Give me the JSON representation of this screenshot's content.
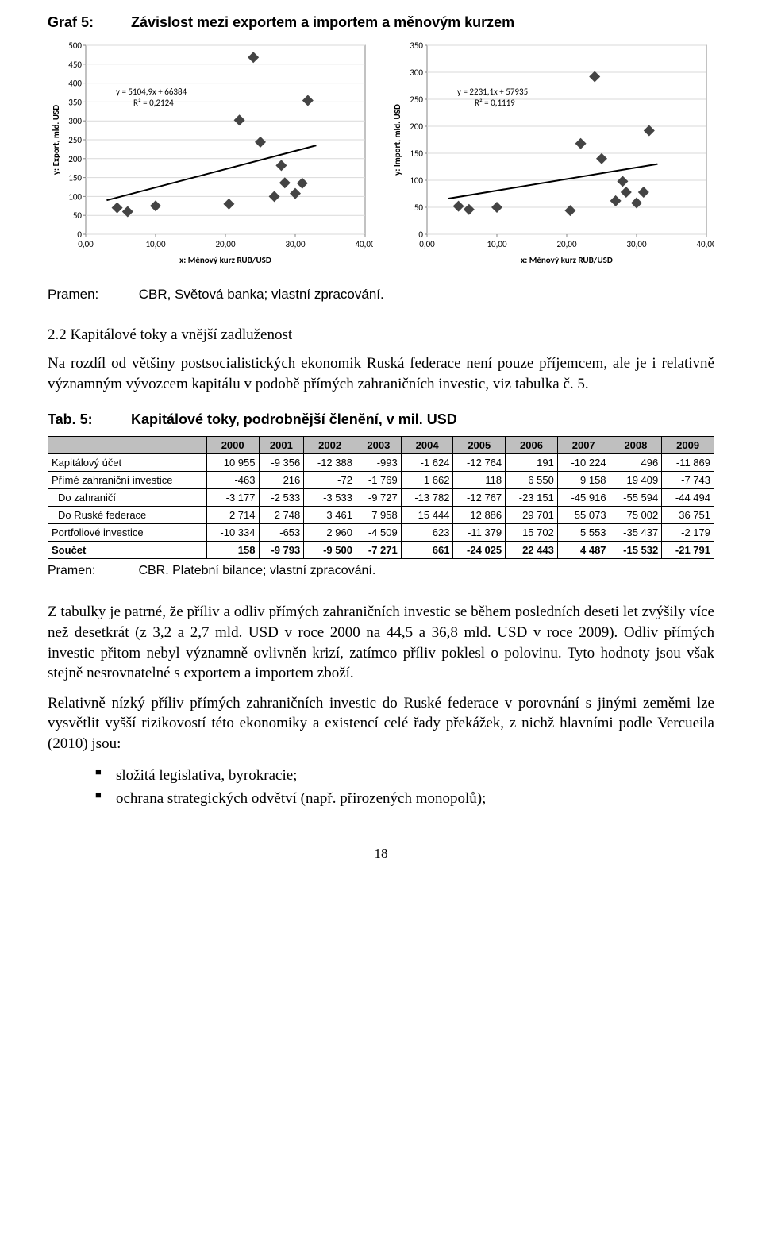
{
  "graf5": {
    "label": "Graf 5:",
    "title": "Závislost mezi exportem a importem a měnovým kurzem"
  },
  "chart_left": {
    "type": "scatter-with-trend",
    "background_color": "#ffffff",
    "plot_border_color": "#848484",
    "grid_color": "#d9d9d9",
    "axis_text_color": "#000000",
    "tick_fontsize": 11,
    "axis_label_fontsize": 11,
    "xlabel": "x: Měnový kurz RUB/USD",
    "ylabel": "y: Export, mld. USD",
    "xlim": [
      0,
      40
    ],
    "ylim": [
      0,
      500
    ],
    "xticks": [
      "0,00",
      "10,00",
      "20,00",
      "30,00",
      "40,00"
    ],
    "yticks": [
      0,
      50,
      100,
      150,
      200,
      250,
      300,
      350,
      400,
      450,
      500
    ],
    "marker_color": "#444444",
    "marker_size": 7,
    "trend_color": "#000000",
    "trend_width": 2,
    "equation": "y = 5104,9x + 66384",
    "r2": "R² = 0,2124",
    "points": [
      [
        4.5,
        70
      ],
      [
        6.0,
        60
      ],
      [
        10.0,
        75
      ],
      [
        20.5,
        80
      ],
      [
        22.0,
        302
      ],
      [
        24.0,
        468
      ],
      [
        25.0,
        244
      ],
      [
        27.0,
        100
      ],
      [
        28.0,
        182
      ],
      [
        28.5,
        136
      ],
      [
        30.0,
        108
      ],
      [
        31.0,
        135
      ],
      [
        31.8,
        354
      ]
    ],
    "trend_line": {
      "x1": 3,
      "y1": 90,
      "x2": 33,
      "y2": 235
    }
  },
  "chart_right": {
    "type": "scatter-with-trend",
    "background_color": "#ffffff",
    "plot_border_color": "#848484",
    "grid_color": "#d9d9d9",
    "axis_text_color": "#000000",
    "tick_fontsize": 11,
    "axis_label_fontsize": 11,
    "xlabel": "x: Měnový kurz RUB/USD",
    "ylabel": "y: Import, mld. USD",
    "xlim": [
      0,
      40
    ],
    "ylim": [
      0,
      350
    ],
    "xticks": [
      "0,00",
      "10,00",
      "20,00",
      "30,00",
      "40,00"
    ],
    "yticks": [
      0,
      50,
      100,
      150,
      200,
      250,
      300,
      350
    ],
    "marker_color": "#444444",
    "marker_size": 7,
    "trend_color": "#000000",
    "trend_width": 2,
    "equation": "y = 2231,1x + 57935",
    "r2": "R² = 0,1119",
    "points": [
      [
        4.5,
        52
      ],
      [
        6.0,
        46
      ],
      [
        10.0,
        50
      ],
      [
        20.5,
        44
      ],
      [
        22.0,
        168
      ],
      [
        24.0,
        292
      ],
      [
        25.0,
        140
      ],
      [
        27.0,
        62
      ],
      [
        28.0,
        98
      ],
      [
        28.5,
        78
      ],
      [
        30.0,
        58
      ],
      [
        31.0,
        78
      ],
      [
        31.8,
        192
      ]
    ],
    "trend_line": {
      "x1": 3,
      "y1": 66,
      "x2": 33,
      "y2": 130
    }
  },
  "pramen1": {
    "label": "Pramen:",
    "text": "CBR, Světová banka; vlastní zpracování."
  },
  "section2_2": {
    "title": "2.2 Kapitálové toky a vnější zadluženost",
    "para1": "Na rozdíl od většiny postsocialistických ekonomik Ruská federace není pouze příjemcem, ale je i relativně významným vývozcem kapitálu v podobě přímých zahraničních investic, viz tabulka č. 5."
  },
  "tab5": {
    "label": "Tab. 5:",
    "title": "Kapitálové toky, podrobnější členění, v mil. USD",
    "columns": [
      "",
      "2000",
      "2001",
      "2002",
      "2003",
      "2004",
      "2005",
      "2006",
      "2007",
      "2008",
      "2009"
    ],
    "cell_fontsize": 13,
    "header_bg": "#bfbfbf",
    "border_color": "#000000",
    "rows": [
      {
        "indent": 0,
        "bold": false,
        "label": "Kapitálový účet",
        "values": [
          "10 955",
          "-9 356",
          "-12 388",
          "-993",
          "-1 624",
          "-12 764",
          "191",
          "-10 224",
          "496",
          "-11 869"
        ]
      },
      {
        "indent": 0,
        "bold": false,
        "label": "Přímé zahraniční investice",
        "values": [
          "-463",
          "216",
          "-72",
          "-1 769",
          "1 662",
          "118",
          "6 550",
          "9 158",
          "19 409",
          "-7 743"
        ]
      },
      {
        "indent": 1,
        "bold": false,
        "label": "Do zahraničí",
        "values": [
          "-3 177",
          "-2 533",
          "-3 533",
          "-9 727",
          "-13 782",
          "-12 767",
          "-23 151",
          "-45 916",
          "-55 594",
          "-44 494"
        ]
      },
      {
        "indent": 1,
        "bold": false,
        "label": "Do Ruské federace",
        "values": [
          "2 714",
          "2 748",
          "3 461",
          "7 958",
          "15 444",
          "12 886",
          "29 701",
          "55 073",
          "75 002",
          "36 751"
        ]
      },
      {
        "indent": 0,
        "bold": false,
        "label": "Portfoliové investice",
        "values": [
          "-10 334",
          "-653",
          "2 960",
          "-4 509",
          "623",
          "-11 379",
          "15 702",
          "5 553",
          "-35 437",
          "-2 179"
        ]
      },
      {
        "indent": 0,
        "bold": true,
        "label": "Součet",
        "values": [
          "158",
          "-9 793",
          "-9 500",
          "-7 271",
          "661",
          "-24 025",
          "22 443",
          "4 487",
          "-15 532",
          "-21 791"
        ]
      }
    ]
  },
  "pramen2": {
    "label": "Pramen:",
    "text": "CBR. Platební bilance; vlastní zpracování."
  },
  "para_after_table": "Z tabulky je patrné, že příliv a odliv přímých zahraničních investic se během posledních deseti let zvýšily více než desetkrát (z 3,2 a 2,7 mld. USD v roce 2000 na 44,5 a 36,8 mld. USD v roce 2009). Odliv přímých investic přitom nebyl významně ovlivněn krizí, zatímco příliv poklesl o polovinu. Tyto hodnoty jsou však stejně nesrovnatelné s exportem a importem zboží.",
  "para_relative": "Relativně nízký příliv přímých zahraničních investic do Ruské federace v porovnání s jinými zeměmi lze vysvětlit vyšší rizikovostí této ekonomiky a existencí celé řady překážek, z nichž hlavními podle Vercueila (2010) jsou:",
  "bullets": [
    "složitá legislativa, byrokracie;",
    "ochrana strategických odvětví (např. přirozených monopolů);"
  ],
  "page_number": "18"
}
